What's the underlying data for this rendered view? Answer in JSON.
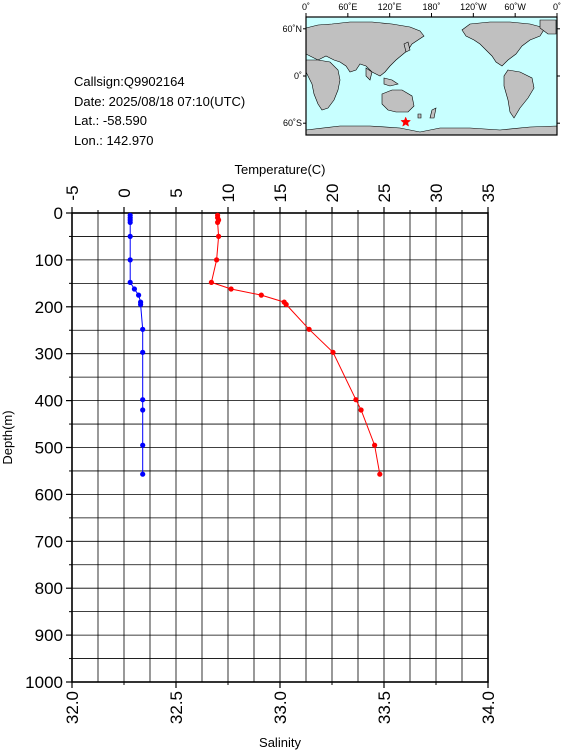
{
  "info": {
    "callsign": "Callsign:Q9902164",
    "date": "Date:  2025/08/18 07:10(UTC)",
    "lat": "Lat.:  -58.590",
    "lon": "Lon.:  142.970"
  },
  "map": {
    "lon_labels": [
      "0˚",
      "60˚E",
      "120˚E",
      "180˚",
      "120˚W",
      "60˚W",
      "0˚"
    ],
    "lat_labels": [
      "60˚N",
      "0˚",
      "60˚S"
    ],
    "marker_lon": 142.97,
    "marker_lat": -58.59,
    "ocean_color": "#c8ffff",
    "land_color": "#c0c0c0",
    "marker_color": "#ff0000"
  },
  "chart_data": {
    "type": "line",
    "ylabel": "Depth(m)",
    "ylim": [
      1000,
      0
    ],
    "yticks": [
      0,
      100,
      200,
      300,
      400,
      500,
      600,
      700,
      800,
      900,
      1000
    ],
    "top_axis": {
      "label": "Temperature(C)",
      "range": [
        -5,
        35
      ],
      "ticks": [
        -5,
        0,
        5,
        10,
        15,
        20,
        25,
        30,
        35
      ]
    },
    "bottom_axis": {
      "label": "Salinity",
      "range": [
        32.0,
        34.0
      ],
      "ticks": [
        "32.0",
        "32.5",
        "33.0",
        "33.5",
        "34.0"
      ]
    },
    "grid": true,
    "series": [
      {
        "axis": "top",
        "color": "#ff0000",
        "points": [
          [
            9.0,
            5
          ],
          [
            9.0,
            10
          ],
          [
            9.1,
            15
          ],
          [
            9.0,
            20
          ],
          [
            9.1,
            50
          ],
          [
            8.9,
            100
          ],
          [
            8.4,
            148
          ],
          [
            10.3,
            162
          ],
          [
            13.2,
            175
          ],
          [
            15.4,
            190
          ],
          [
            15.6,
            195
          ],
          [
            17.8,
            248
          ],
          [
            20.1,
            297
          ],
          [
            22.3,
            398
          ],
          [
            22.8,
            420
          ],
          [
            24.1,
            495
          ],
          [
            24.6,
            557
          ]
        ]
      },
      {
        "axis": "bottom",
        "color": "#0000ff",
        "points": [
          [
            32.28,
            5
          ],
          [
            32.28,
            10
          ],
          [
            32.28,
            15
          ],
          [
            32.28,
            20
          ],
          [
            32.28,
            50
          ],
          [
            32.28,
            100
          ],
          [
            32.28,
            148
          ],
          [
            32.3,
            162
          ],
          [
            32.32,
            175
          ],
          [
            32.33,
            190
          ],
          [
            32.33,
            195
          ],
          [
            32.34,
            248
          ],
          [
            32.34,
            297
          ],
          [
            32.34,
            398
          ],
          [
            32.34,
            420
          ],
          [
            32.34,
            495
          ],
          [
            32.34,
            557
          ]
        ]
      }
    ]
  }
}
